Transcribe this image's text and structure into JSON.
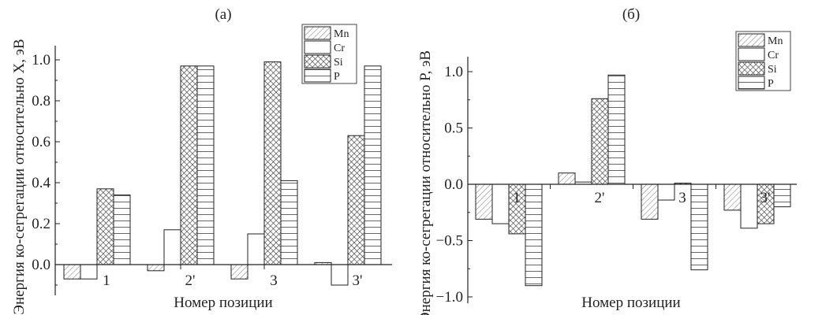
{
  "chart_data": [
    {
      "type": "bar",
      "title": "(a)",
      "xlabel": "Номер позиции",
      "ylabel": "Энергия ко-сегрегации относительно X, эВ",
      "categories": [
        "1",
        "2'",
        "3",
        "3'"
      ],
      "ylim": [
        -0.15,
        1.07
      ],
      "yticks": [
        "0.0",
        "0.2",
        "0.4",
        "0.6",
        "0.8",
        "1.0"
      ],
      "ytick_values": [
        0,
        0.2,
        0.4,
        0.6,
        0.8,
        1.0
      ],
      "grid": false,
      "legend": "top-right",
      "series": [
        {
          "name": "Mn",
          "pattern": "diagonal-hatch",
          "values": [
            -0.07,
            -0.03,
            -0.07,
            0.01
          ]
        },
        {
          "name": "Cr",
          "pattern": "empty",
          "values": [
            -0.07,
            0.17,
            0.15,
            -0.1
          ]
        },
        {
          "name": "Si",
          "pattern": "crosshatch",
          "values": [
            0.37,
            0.97,
            0.99,
            0.63
          ]
        },
        {
          "name": "P",
          "pattern": "horizontal-lines",
          "values": [
            0.34,
            0.97,
            0.41,
            0.97
          ]
        }
      ]
    },
    {
      "type": "bar",
      "title": "(б)",
      "xlabel": "Номер позиции",
      "ylabel": "Энергия ко-сегрегации относительно P, эВ",
      "categories": [
        "1",
        "2'",
        "3",
        "3'"
      ],
      "ylim": [
        -1.05,
        1.13
      ],
      "yticks": [
        "−1.0",
        "−0.5",
        "0.0",
        "0.5",
        "1.0"
      ],
      "ytick_values": [
        -1.0,
        -0.5,
        0,
        0.5,
        1.0
      ],
      "grid": false,
      "legend": "top-right",
      "series": [
        {
          "name": "Mn",
          "pattern": "diagonal-hatch",
          "values": [
            -0.31,
            0.1,
            -0.31,
            -0.23
          ]
        },
        {
          "name": "Cr",
          "pattern": "empty",
          "values": [
            -0.35,
            0.02,
            -0.14,
            -0.39
          ]
        },
        {
          "name": "Si",
          "pattern": "crosshatch",
          "values": [
            -0.44,
            0.76,
            0.01,
            -0.35
          ]
        },
        {
          "name": "P",
          "pattern": "horizontal-lines",
          "values": [
            -0.9,
            0.97,
            -0.76,
            -0.2
          ]
        }
      ]
    }
  ]
}
